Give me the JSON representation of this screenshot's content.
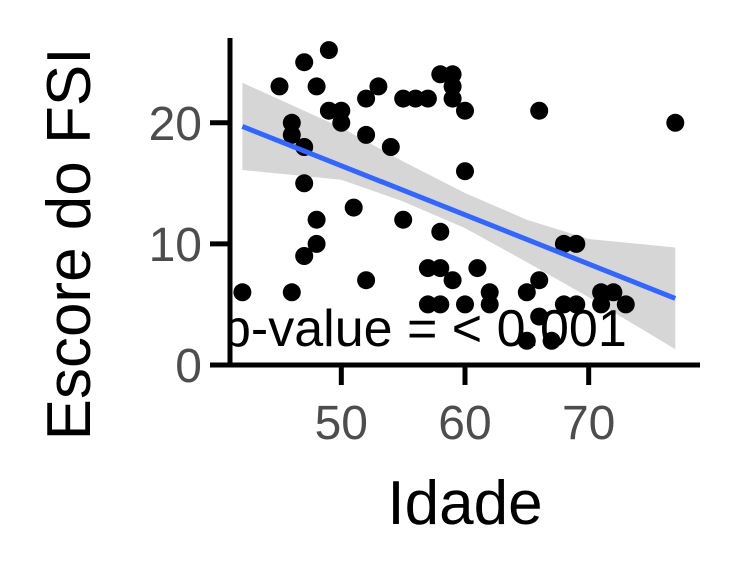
{
  "chart_data": {
    "type": "scatter",
    "xlabel": "Idade",
    "ylabel": "Escore do FSI",
    "xlim": [
      41,
      79
    ],
    "ylim": [
      0,
      27
    ],
    "x_ticks": [
      50,
      60,
      70
    ],
    "y_ticks": [
      0,
      10,
      20
    ],
    "grid": false,
    "annotation": "p-value = < 0.001",
    "colors": {
      "points": "#000000",
      "fit_line": "#3366ff",
      "ci_band": "#d6d6d6",
      "axis": "#000000",
      "tick_text": "#4d4d4d"
    },
    "points": [
      [
        42,
        6
      ],
      [
        45,
        23
      ],
      [
        46,
        20
      ],
      [
        46,
        19
      ],
      [
        46,
        6
      ],
      [
        47,
        25
      ],
      [
        47,
        18
      ],
      [
        47,
        15
      ],
      [
        47,
        9
      ],
      [
        48,
        23
      ],
      [
        48,
        12
      ],
      [
        48,
        10
      ],
      [
        49,
        26
      ],
      [
        49,
        21
      ],
      [
        50,
        21
      ],
      [
        50,
        20
      ],
      [
        51,
        13
      ],
      [
        52,
        22
      ],
      [
        52,
        19
      ],
      [
        52,
        7
      ],
      [
        53,
        23
      ],
      [
        54,
        18
      ],
      [
        55,
        22
      ],
      [
        55,
        12
      ],
      [
        56,
        22
      ],
      [
        57,
        22
      ],
      [
        57,
        8
      ],
      [
        57,
        5
      ],
      [
        58,
        24
      ],
      [
        58,
        11
      ],
      [
        58,
        8
      ],
      [
        58,
        5
      ],
      [
        59,
        24
      ],
      [
        59,
        23
      ],
      [
        59,
        22
      ],
      [
        59,
        7
      ],
      [
        60,
        21
      ],
      [
        60,
        16
      ],
      [
        60,
        5
      ],
      [
        61,
        8
      ],
      [
        62,
        6
      ],
      [
        62,
        5
      ],
      [
        65,
        6
      ],
      [
        65,
        2
      ],
      [
        66,
        21
      ],
      [
        66,
        7
      ],
      [
        66,
        4
      ],
      [
        67,
        2
      ],
      [
        68,
        10
      ],
      [
        68,
        5
      ],
      [
        69,
        10
      ],
      [
        69,
        5
      ],
      [
        71,
        6
      ],
      [
        71,
        5
      ],
      [
        72,
        6
      ],
      [
        73,
        5
      ],
      [
        77,
        20
      ]
    ],
    "fit": {
      "x": [
        42,
        77
      ],
      "y": [
        19.7,
        5.5
      ],
      "ci": [
        {
          "x": 42,
          "lower": 16.1,
          "upper": 23.3
        },
        {
          "x": 50,
          "lower": 15.3,
          "upper": 19.6
        },
        {
          "x": 55,
          "lower": 13.5,
          "upper": 16.8
        },
        {
          "x": 60,
          "lower": 11.3,
          "upper": 14.2
        },
        {
          "x": 65,
          "lower": 8.5,
          "upper": 12.0
        },
        {
          "x": 70,
          "lower": 5.6,
          "upper": 10.4
        },
        {
          "x": 77,
          "lower": 1.3,
          "upper": 9.7
        }
      ]
    }
  }
}
